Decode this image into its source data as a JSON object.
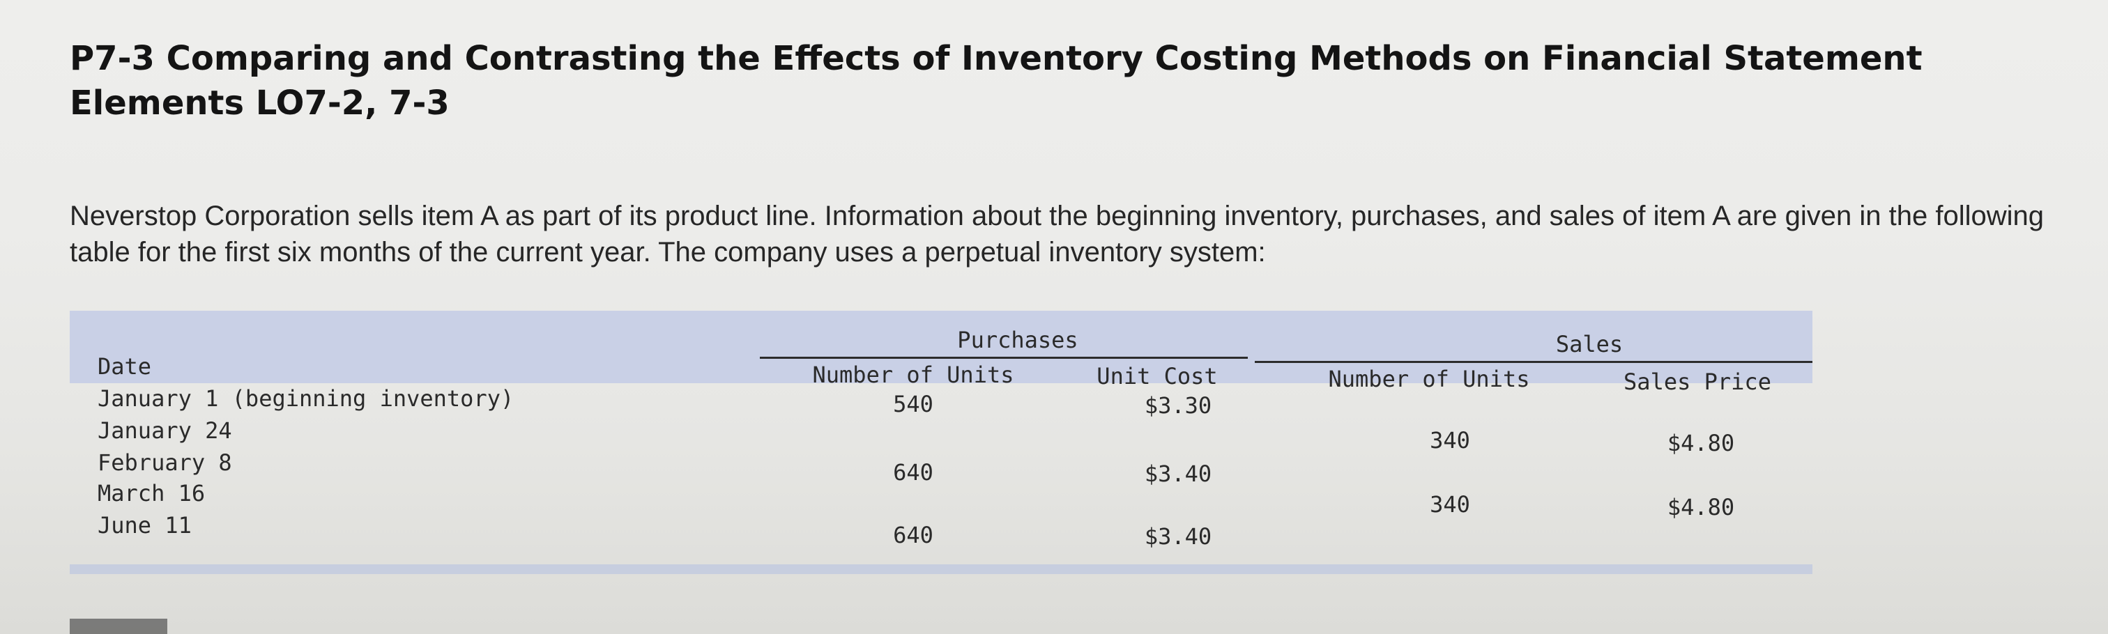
{
  "title": "P7-3 Comparing and Contrasting the Effects of Inventory Costing Methods on Financial Statement Elements LO7-2, 7-3",
  "intro": "Neverstop Corporation sells item A as part of its product line. Information about the beginning inventory, purchases, and sales of item A are given in the following table for the first six months of the current year. The company uses a perpetual inventory system:",
  "table": {
    "group_headers": {
      "purchases": "Purchases",
      "sales": "Sales"
    },
    "columns": {
      "date": "Date",
      "purchase_units": "Number of Units",
      "unit_cost": "Unit Cost",
      "sales_units": "Number of Units",
      "sales_price": "Sales Price"
    },
    "rows": [
      {
        "date": "January 1 (beginning inventory)",
        "purchase_units": "540",
        "unit_cost": "$3.30",
        "sales_units": "",
        "sales_price": ""
      },
      {
        "date": "January 24",
        "purchase_units": "",
        "unit_cost": "",
        "sales_units": "340",
        "sales_price": "$4.80"
      },
      {
        "date": "February 8",
        "purchase_units": "640",
        "unit_cost": "$3.40",
        "sales_units": "",
        "sales_price": ""
      },
      {
        "date": "March 16",
        "purchase_units": "",
        "unit_cost": "",
        "sales_units": "340",
        "sales_price": "$4.80"
      },
      {
        "date": "June 11",
        "purchase_units": "640",
        "unit_cost": "$3.40",
        "sales_units": "",
        "sales_price": ""
      }
    ]
  }
}
